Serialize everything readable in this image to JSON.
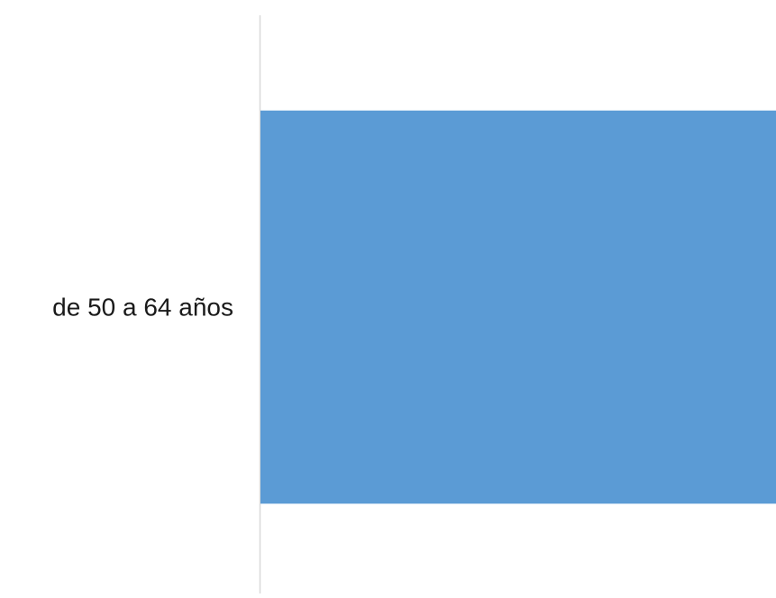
{
  "chart_data": {
    "type": "bar",
    "orientation": "horizontal",
    "categories": [
      "de 50 a 64 años"
    ],
    "values": [
      1
    ],
    "title": "",
    "xlabel": "",
    "ylabel": "",
    "xlim": [
      0,
      1
    ],
    "grid": false,
    "legend": "none",
    "colors": {
      "bar": "#5b9bd5",
      "axis_line": "#d9d9d9",
      "label": "#1a1a1a"
    }
  }
}
